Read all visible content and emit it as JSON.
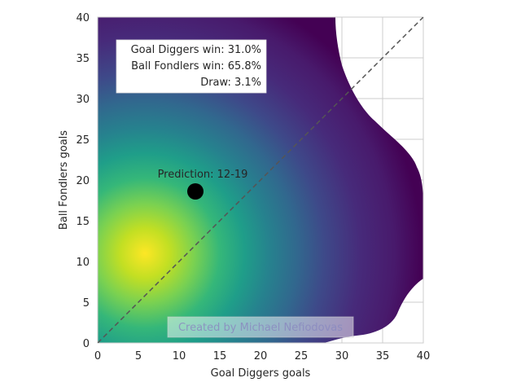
{
  "chart_data": {
    "type": "heatmap",
    "title": "",
    "xlabel": "Goal Diggers goals",
    "ylabel": "Ball Fondlers goals",
    "xlim": [
      0,
      40
    ],
    "ylim": [
      0,
      40
    ],
    "x_ticks": [
      0,
      5,
      10,
      15,
      20,
      25,
      30,
      35,
      40
    ],
    "y_ticks": [
      0,
      5,
      10,
      15,
      20,
      25,
      30,
      35,
      40
    ],
    "grid": true,
    "colormap": "viridis",
    "density": {
      "peak_x": 6,
      "peak_y": 11,
      "description_units": "goals"
    },
    "diagonal": {
      "from": [
        0,
        0
      ],
      "to": [
        40,
        40
      ],
      "style": "dashed",
      "color": "#555555"
    },
    "prediction": {
      "label": "Prediction: 12-19",
      "x": 12,
      "y": 18.6,
      "color": "#000000"
    },
    "stats_box": {
      "lines": [
        "Goal Diggers win: 31.0%",
        "Ball Fondlers win: 65.8%",
        "Draw: 3.1%"
      ]
    },
    "watermark": "Created by Michael Nefiodovas"
  }
}
